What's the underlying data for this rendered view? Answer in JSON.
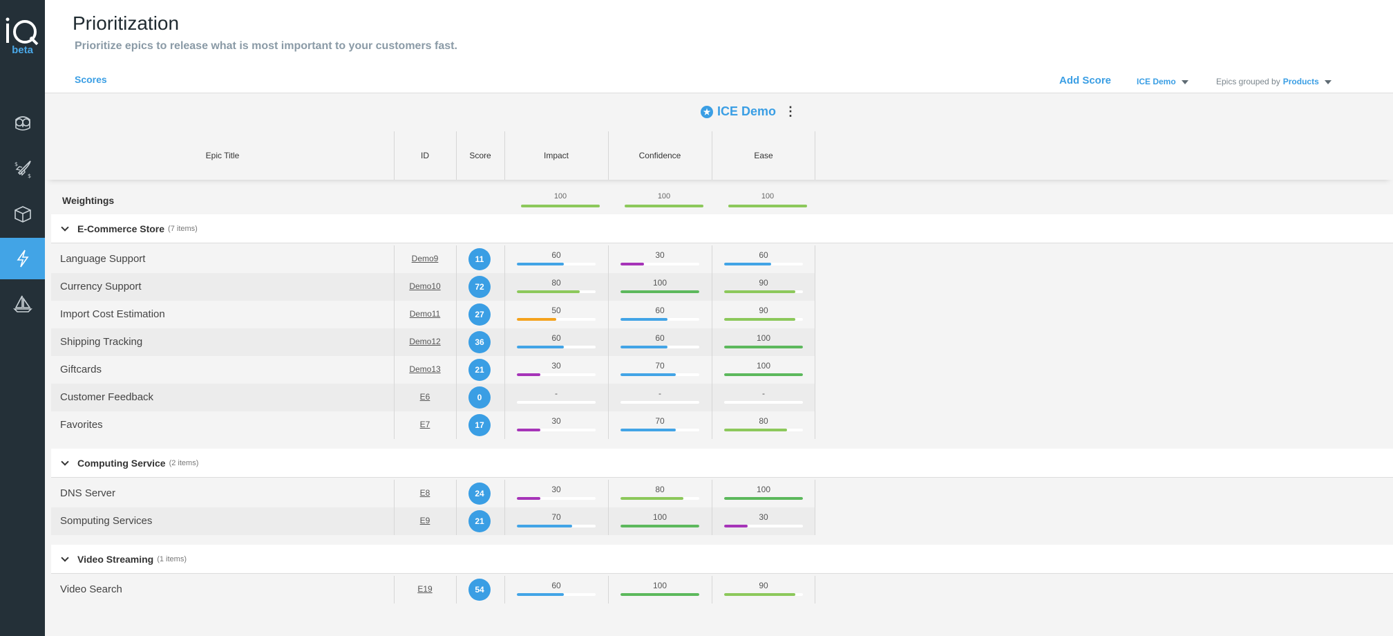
{
  "app": {
    "logo_text": "iQ",
    "logo_badge": "beta"
  },
  "sidebar": {
    "items": [
      {
        "icon": "owl-icon",
        "active": false
      },
      {
        "icon": "rocket-icon",
        "active": false
      },
      {
        "icon": "box-icon",
        "active": false
      },
      {
        "icon": "lightning-icon",
        "active": true
      },
      {
        "icon": "sailboat-icon",
        "active": false
      }
    ]
  },
  "header": {
    "title": "Prioritization",
    "subtitle": "Prioritize epics to release what is most important to your customers fast.",
    "tab_scores": "Scores",
    "add_score": "Add Score",
    "score_selector": "ICE Demo",
    "grouped_label": "Epics grouped by",
    "grouped_value": "Products"
  },
  "scoreboard": {
    "title": "ICE Demo",
    "columns": {
      "epic_title": "Epic Title",
      "id": "ID",
      "score": "Score",
      "impact": "Impact",
      "confidence": "Confidence",
      "ease": "Ease"
    },
    "weightings_label": "Weightings",
    "weightings": [
      "100",
      "100",
      "100"
    ]
  },
  "groups": [
    {
      "name": "E-Commerce Store",
      "count": "(7 items)",
      "rows": [
        {
          "title": "Language Support",
          "id": "Demo9",
          "score": "11",
          "impact": "60",
          "confidence": "30",
          "ease": "60"
        },
        {
          "title": "Currency Support",
          "id": "Demo10",
          "score": "72",
          "impact": "80",
          "confidence": "100",
          "ease": "90"
        },
        {
          "title": "Import Cost Estimation",
          "id": "Demo11",
          "score": "27",
          "impact": "50",
          "confidence": "60",
          "ease": "90"
        },
        {
          "title": "Shipping Tracking",
          "id": "Demo12",
          "score": "36",
          "impact": "60",
          "confidence": "60",
          "ease": "100"
        },
        {
          "title": "Giftcards",
          "id": "Demo13",
          "score": "21",
          "impact": "30",
          "confidence": "70",
          "ease": "100"
        },
        {
          "title": "Customer Feedback",
          "id": "E6",
          "score": "0",
          "impact": "-",
          "confidence": "-",
          "ease": "-"
        },
        {
          "title": "Favorites",
          "id": "E7",
          "score": "17",
          "impact": "30",
          "confidence": "70",
          "ease": "80"
        }
      ]
    },
    {
      "name": "Computing Service",
      "count": "(2 items)",
      "rows": [
        {
          "title": "DNS Server",
          "id": "E8",
          "score": "24",
          "impact": "30",
          "confidence": "80",
          "ease": "100"
        },
        {
          "title": "Somputing Services",
          "id": "E9",
          "score": "21",
          "impact": "70",
          "confidence": "100",
          "ease": "30"
        }
      ]
    },
    {
      "name": "Video Streaming",
      "count": "(1 items)",
      "rows": [
        {
          "title": "Video Search",
          "id": "E19",
          "score": "54",
          "impact": "60",
          "confidence": "100",
          "ease": "90"
        }
      ]
    }
  ],
  "colors": {
    "accent": "#3a9ee4",
    "sidebar_bg": "#243038",
    "bar_purple": "#a634b8",
    "bar_blue": "#42a4e6",
    "bar_orange": "#f4a21d",
    "bar_lightgreen": "#8cc85b",
    "bar_green": "#5cb85c",
    "weighting_bar": "#8cc85b"
  }
}
